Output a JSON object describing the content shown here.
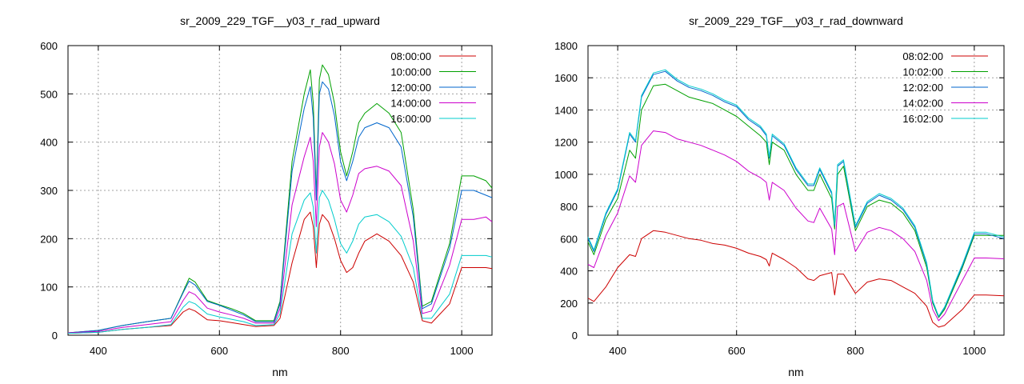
{
  "chart_data": [
    {
      "type": "line",
      "title": "sr_2009_229_TGF__y03_r_rad_upward",
      "xlabel": "nm",
      "ylabel": "",
      "xlim": [
        350,
        1050
      ],
      "ylim": [
        0,
        600
      ],
      "xticks": [
        400,
        600,
        800,
        1000
      ],
      "yticks": [
        0,
        100,
        200,
        300,
        400,
        500,
        600
      ],
      "grid": true,
      "legend_position": "top-right",
      "x": [
        350,
        400,
        440,
        480,
        520,
        540,
        550,
        560,
        580,
        600,
        620,
        640,
        660,
        690,
        700,
        720,
        740,
        750,
        755,
        760,
        765,
        770,
        780,
        790,
        800,
        810,
        820,
        830,
        840,
        860,
        880,
        900,
        920,
        935,
        950,
        980,
        1000,
        1020,
        1040,
        1050
      ],
      "series": [
        {
          "name": "08:00:00",
          "color": "#cc0000",
          "values": [
            4,
            6,
            12,
            16,
            20,
            48,
            55,
            50,
            32,
            30,
            26,
            22,
            18,
            20,
            35,
            150,
            240,
            255,
            225,
            140,
            230,
            250,
            235,
            200,
            155,
            130,
            140,
            170,
            195,
            210,
            195,
            165,
            110,
            30,
            25,
            65,
            140,
            140,
            140,
            138
          ]
        },
        {
          "name": "10:00:00",
          "color": "#00a000",
          "values": [
            5,
            10,
            20,
            28,
            35,
            90,
            118,
            110,
            72,
            63,
            55,
            45,
            30,
            30,
            70,
            360,
            500,
            550,
            480,
            290,
            530,
            560,
            540,
            480,
            380,
            330,
            380,
            440,
            460,
            480,
            460,
            420,
            260,
            60,
            70,
            190,
            330,
            330,
            320,
            305
          ]
        },
        {
          "name": "12:00:00",
          "color": "#0066cc",
          "values": [
            5,
            10,
            20,
            28,
            35,
            88,
            112,
            104,
            70,
            62,
            52,
            42,
            28,
            28,
            65,
            340,
            470,
            515,
            450,
            280,
            500,
            525,
            510,
            455,
            360,
            320,
            360,
            410,
            430,
            440,
            430,
            390,
            245,
            55,
            65,
            180,
            300,
            300,
            290,
            285
          ]
        },
        {
          "name": "14:00:00",
          "color": "#cc00cc",
          "values": [
            5,
            8,
            16,
            22,
            28,
            72,
            90,
            84,
            56,
            48,
            42,
            35,
            25,
            25,
            55,
            270,
            370,
            410,
            360,
            225,
            390,
            420,
            400,
            355,
            280,
            255,
            290,
            335,
            345,
            350,
            340,
            310,
            195,
            45,
            50,
            145,
            240,
            240,
            245,
            235
          ]
        },
        {
          "name": "16:00:00",
          "color": "#00cccc",
          "values": [
            4,
            6,
            12,
            16,
            22,
            58,
            70,
            65,
            44,
            38,
            33,
            28,
            20,
            22,
            44,
            210,
            280,
            295,
            265,
            170,
            285,
            300,
            280,
            240,
            190,
            170,
            195,
            230,
            245,
            250,
            235,
            205,
            140,
            35,
            35,
            85,
            165,
            165,
            165,
            162
          ]
        }
      ]
    },
    {
      "type": "line",
      "title": "sr_2009_229_TGF__y03_r_rad_downward",
      "xlabel": "nm",
      "ylabel": "",
      "xlim": [
        350,
        1050
      ],
      "ylim": [
        0,
        1800
      ],
      "xticks": [
        400,
        600,
        800,
        1000
      ],
      "yticks": [
        0,
        200,
        400,
        600,
        800,
        1000,
        1200,
        1400,
        1600,
        1800
      ],
      "grid": true,
      "legend_position": "top-right",
      "x": [
        350,
        360,
        380,
        400,
        420,
        430,
        440,
        460,
        480,
        500,
        520,
        540,
        560,
        580,
        600,
        620,
        640,
        650,
        655,
        660,
        680,
        700,
        720,
        730,
        740,
        760,
        765,
        770,
        780,
        800,
        820,
        840,
        860,
        880,
        900,
        920,
        930,
        940,
        950,
        980,
        1000,
        1020,
        1050
      ],
      "series": [
        {
          "name": "08:02:00",
          "color": "#cc0000",
          "values": [
            230,
            210,
            300,
            420,
            500,
            490,
            600,
            650,
            640,
            620,
            600,
            590,
            570,
            560,
            540,
            510,
            490,
            470,
            430,
            510,
            470,
            420,
            350,
            340,
            370,
            390,
            250,
            380,
            380,
            260,
            330,
            350,
            340,
            300,
            260,
            180,
            80,
            50,
            60,
            160,
            250,
            250,
            245
          ]
        },
        {
          "name": "10:02:00",
          "color": "#00a000",
          "values": [
            580,
            500,
            720,
            850,
            1150,
            1100,
            1400,
            1550,
            1560,
            1520,
            1480,
            1460,
            1440,
            1400,
            1360,
            1300,
            1240,
            1200,
            1060,
            1200,
            1150,
            1000,
            900,
            900,
            1000,
            850,
            660,
            1000,
            1050,
            650,
            800,
            840,
            820,
            760,
            650,
            420,
            200,
            110,
            160,
            420,
            620,
            620,
            620
          ]
        },
        {
          "name": "12:02:00",
          "color": "#0066cc",
          "values": [
            600,
            520,
            750,
            900,
            1250,
            1200,
            1480,
            1620,
            1640,
            1580,
            1540,
            1520,
            1490,
            1450,
            1420,
            1340,
            1290,
            1240,
            1100,
            1240,
            1180,
            1030,
            930,
            930,
            1030,
            880,
            680,
            1050,
            1080,
            670,
            820,
            870,
            840,
            780,
            670,
            440,
            210,
            115,
            170,
            430,
            630,
            630,
            600
          ]
        },
        {
          "name": "14:02:00",
          "color": "#cc00cc",
          "values": [
            440,
            420,
            620,
            760,
            990,
            950,
            1180,
            1270,
            1260,
            1220,
            1200,
            1180,
            1150,
            1120,
            1080,
            1020,
            980,
            950,
            840,
            950,
            900,
            790,
            710,
            700,
            790,
            660,
            500,
            800,
            820,
            520,
            640,
            670,
            650,
            600,
            520,
            340,
            160,
            90,
            130,
            340,
            480,
            480,
            475
          ]
        },
        {
          "name": "16:02:00",
          "color": "#00cccc",
          "values": [
            610,
            530,
            760,
            910,
            1260,
            1210,
            1490,
            1630,
            1650,
            1590,
            1550,
            1530,
            1500,
            1460,
            1430,
            1350,
            1300,
            1250,
            1110,
            1250,
            1190,
            1040,
            940,
            940,
            1040,
            890,
            690,
            1060,
            1090,
            680,
            830,
            880,
            850,
            790,
            680,
            450,
            215,
            118,
            175,
            440,
            640,
            640,
            610
          ]
        }
      ]
    }
  ]
}
